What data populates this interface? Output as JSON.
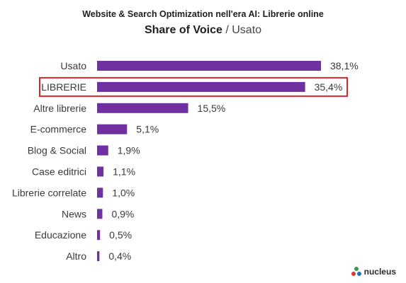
{
  "header": {
    "title": "Website & Search Optimization nell'era AI: Librerie online",
    "subtitle_strong": "Share of Voice",
    "subtitle_rest": " / Usato"
  },
  "chart_data": {
    "type": "bar",
    "orientation": "horizontal",
    "categories": [
      "Usato",
      "LIBRERIE",
      "Altre librerie",
      "E-commerce",
      "Blog & Social",
      "Case editrici",
      "Librerie correlate",
      "News",
      "Educazione",
      "Altro"
    ],
    "values": [
      38.1,
      35.4,
      15.5,
      5.1,
      1.9,
      1.1,
      1.0,
      0.9,
      0.5,
      0.4
    ],
    "value_labels": [
      "38,1%",
      "35,4%",
      "15,5%",
      "5,1%",
      "1,9%",
      "1,1%",
      "1,0%",
      "0,9%",
      "0,5%",
      "0,4%"
    ],
    "highlighted_category": "LIBRERIE",
    "bar_color": "#7030a0",
    "highlight_color": "#e0242b",
    "xlim": [
      0,
      38.1
    ],
    "grid": false,
    "legend": "none"
  },
  "logo": {
    "text": "nucleus",
    "icon": "nucleus-logo-icon"
  }
}
